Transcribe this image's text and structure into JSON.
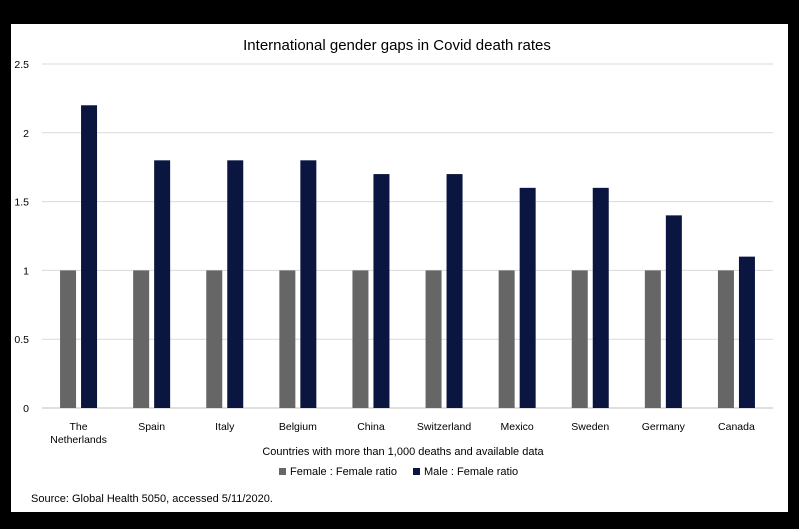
{
  "chart_data": {
    "type": "bar",
    "title": "International gender gaps in Covid death rates",
    "xlabel": "Countries with more than 1,000 deaths and available data",
    "ylabel": "",
    "categories": [
      [
        "The",
        "Netherlands"
      ],
      [
        "Spain"
      ],
      [
        "Italy"
      ],
      [
        "Belgium"
      ],
      [
        "China"
      ],
      [
        "Switzerland"
      ],
      [
        "Mexico"
      ],
      [
        "Sweden"
      ],
      [
        "Germany"
      ],
      [
        "Canada"
      ]
    ],
    "series": [
      {
        "name": "Female : Female ratio",
        "color": "#666666",
        "values": [
          1,
          1,
          1,
          1,
          1,
          1,
          1,
          1,
          1,
          1
        ]
      },
      {
        "name": "Male : Female ratio",
        "color": "#0a1640",
        "values": [
          2.2,
          1.8,
          1.8,
          1.8,
          1.7,
          1.7,
          1.6,
          1.6,
          1.4,
          1.1
        ]
      }
    ],
    "ylim": [
      0,
      2.5
    ],
    "yticks": [
      "0",
      "0.5",
      "1",
      "1.5",
      "2",
      "2.5"
    ],
    "grid": true,
    "legend_position": "bottom",
    "source": "Source: Global Health 5050, accessed 5/11/2020."
  }
}
